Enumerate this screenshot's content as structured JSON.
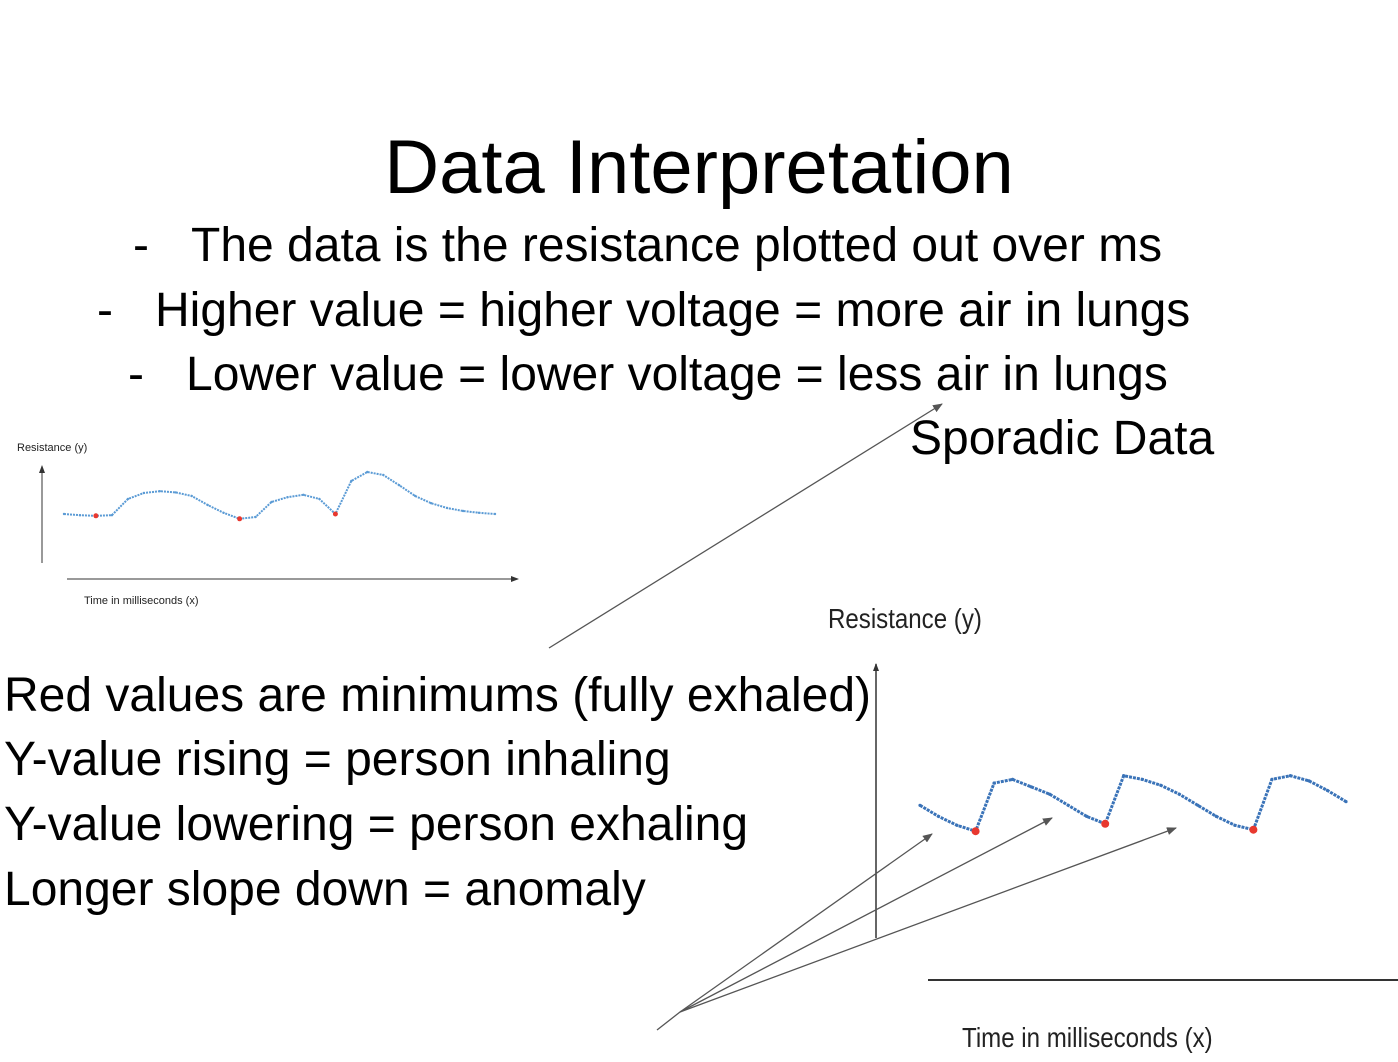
{
  "slide": {
    "title": "Data Interpretation",
    "bullets": [
      {
        "marker": "-",
        "text": "The data is the resistance plotted out over ms"
      },
      {
        "marker": "-",
        "text": "Higher value = higher voltage = more air in lungs"
      },
      {
        "marker": "-",
        "text": "Lower value = lower voltage = less air in lungs"
      }
    ],
    "sporadic_label": "Sporadic Data",
    "notes": [
      "Red values are minimums (fully exhaled)",
      "Y-value rising = person inhaling",
      "Y-value lowering = person exhaling",
      "Longer slope down = anomaly"
    ]
  },
  "chart_data": [
    {
      "type": "scatter",
      "title": "",
      "ylabel": "Resistance (y)",
      "xlabel": "Time in milliseconds (x)",
      "series": [
        {
          "values": [
            0.3,
            0.28,
            0.27,
            0.28,
            0.55,
            0.65,
            0.68,
            0.66,
            0.6,
            0.45,
            0.32,
            0.22,
            0.25,
            0.5,
            0.58,
            0.62,
            0.55,
            0.3,
            0.85,
            1.0,
            0.95,
            0.78,
            0.6,
            0.48,
            0.4,
            0.35,
            0.32,
            0.3
          ]
        }
      ],
      "minimums_index": [
        2,
        11,
        17
      ],
      "colors": {
        "points": "#5b9bd5",
        "minimums": "#e8382f"
      }
    },
    {
      "type": "scatter",
      "title": "",
      "ylabel": "Resistance (y)",
      "xlabel": "Time in milliseconds (x)",
      "series": [
        {
          "values": [
            0.55,
            0.4,
            0.28,
            0.2,
            0.85,
            0.9,
            0.8,
            0.7,
            0.55,
            0.4,
            0.3,
            0.95,
            0.9,
            0.82,
            0.7,
            0.55,
            0.4,
            0.28,
            0.22,
            0.9,
            0.95,
            0.88,
            0.75,
            0.6
          ]
        }
      ],
      "minimums_index": [
        3,
        10,
        18
      ],
      "colors": {
        "points": "#3a73b8",
        "minimums": "#e8382f"
      }
    }
  ],
  "colors": {
    "arrow": "#555555",
    "axis": "#333333"
  }
}
